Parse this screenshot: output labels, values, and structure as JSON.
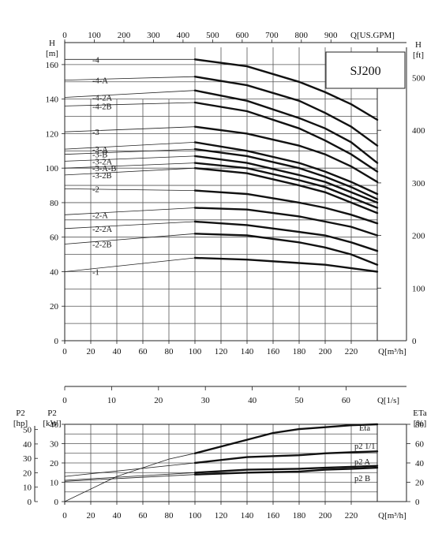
{
  "chart_data": [
    {
      "type": "line",
      "title": "SJ200",
      "xlabel": "Q[m³/h]",
      "x_top_label": "Q[US.GPM]",
      "ylabel": "H [m]",
      "ylabel_right": "H [ft]",
      "xlim": [
        0,
        240
      ],
      "ylim": [
        0,
        170
      ],
      "x_ticks": [
        "0",
        "20",
        "40",
        "60",
        "80",
        "100",
        "120",
        "140",
        "160",
        "180",
        "200",
        "220"
      ],
      "x_top_ticks": [
        "0",
        "100",
        "200",
        "300",
        "400",
        "500",
        "600",
        "700",
        "800",
        "900"
      ],
      "y_ticks": [
        "0",
        "20",
        "40",
        "60",
        "80",
        "100",
        "120",
        "140",
        "160"
      ],
      "y_right_ticks": [
        "0",
        "100",
        "200",
        "300",
        "400",
        "500"
      ],
      "grid": true,
      "series": [
        {
          "name": "-4",
          "x": [
            0,
            100,
            140,
            180,
            200,
            220,
            240
          ],
          "y": [
            163,
            163,
            159,
            150,
            144,
            137,
            128
          ]
        },
        {
          "name": "-4-A",
          "x": [
            0,
            100,
            140,
            180,
            200,
            220,
            240
          ],
          "y": [
            151,
            153,
            148,
            139,
            132,
            124,
            113
          ]
        },
        {
          "name": "-4-2A",
          "x": [
            0,
            100,
            140,
            180,
            200,
            220,
            240
          ],
          "y": [
            141,
            145,
            139,
            129,
            123,
            115,
            103
          ]
        },
        {
          "name": "-4-2B",
          "x": [
            0,
            100,
            140,
            180,
            200,
            220,
            240
          ],
          "y": [
            136,
            138,
            133,
            123,
            116,
            108,
            98
          ]
        },
        {
          "name": "-3",
          "x": [
            0,
            100,
            140,
            180,
            200,
            220,
            240
          ],
          "y": [
            121,
            124,
            120,
            113,
            108,
            101,
            92
          ]
        },
        {
          "name": "-3-A",
          "x": [
            0,
            100,
            140,
            180,
            200,
            220,
            240
          ],
          "y": [
            111,
            115,
            110,
            103,
            98,
            92,
            85
          ]
        },
        {
          "name": "-3-B",
          "x": [
            0,
            100,
            140,
            180,
            200,
            220,
            240
          ],
          "y": [
            108,
            111,
            107,
            100,
            95,
            89,
            82
          ]
        },
        {
          "name": "-3-2A",
          "x": [
            0,
            100,
            140,
            180,
            200,
            220,
            240
          ],
          "y": [
            104,
            107,
            103,
            96,
            92,
            86,
            80
          ]
        },
        {
          "name": "-3-A-B",
          "x": [
            0,
            100,
            140,
            180,
            200,
            220,
            240
          ],
          "y": [
            100,
            103,
            100,
            93,
            89,
            83,
            77
          ]
        },
        {
          "name": "-3-2B",
          "x": [
            0,
            100,
            140,
            180,
            200,
            220,
            240
          ],
          "y": [
            96,
            100,
            97,
            90,
            86,
            80,
            74
          ]
        },
        {
          "name": "-2",
          "x": [
            0,
            100,
            140,
            180,
            200,
            220,
            240
          ],
          "y": [
            88,
            87,
            85,
            80,
            77,
            73,
            68
          ]
        },
        {
          "name": "-2-A",
          "x": [
            0,
            100,
            140,
            180,
            200,
            220,
            240
          ],
          "y": [
            73,
            77,
            76,
            72,
            69,
            66,
            61
          ]
        },
        {
          "name": "-2-2A",
          "x": [
            0,
            100,
            140,
            180,
            200,
            220,
            240
          ],
          "y": [
            65,
            69,
            67,
            63,
            61,
            57,
            52
          ]
        },
        {
          "name": "-2-2B",
          "x": [
            0,
            100,
            140,
            180,
            200,
            220,
            240
          ],
          "y": [
            56,
            62,
            61,
            57,
            54,
            50,
            44
          ]
        },
        {
          "name": "-1",
          "x": [
            0,
            100,
            140,
            180,
            200,
            220,
            240
          ],
          "y": [
            40,
            48,
            47,
            45,
            44,
            42,
            40
          ]
        }
      ]
    },
    {
      "type": "line",
      "xlabel": "Q[m³/h]",
      "x_top_label": "Q[1/s]",
      "ylabel": "P2 [kW]",
      "ylabel_left_outer": "P2 [hp]",
      "ylabel_right": "ETa [%]",
      "xlim": [
        0,
        240
      ],
      "ylim": [
        0,
        40
      ],
      "x_ticks": [
        "0",
        "20",
        "40",
        "60",
        "80",
        "100",
        "120",
        "140",
        "160",
        "180",
        "200",
        "220"
      ],
      "x_top_ticks": [
        "0",
        "10",
        "20",
        "30",
        "40",
        "50",
        "60"
      ],
      "y_ticks": [
        "0",
        "10",
        "20",
        "30",
        "40"
      ],
      "y_hp_ticks": [
        "0",
        "10",
        "20",
        "30",
        "40",
        "50"
      ],
      "y_right_ticks": [
        "0",
        "20",
        "40",
        "60",
        "80"
      ],
      "grid": true,
      "series": [
        {
          "name": "Eta",
          "unit": "%",
          "x": [
            0,
            40,
            80,
            100,
            140,
            160,
            180,
            200,
            220,
            240
          ],
          "y": [
            0,
            26,
            44,
            50,
            64,
            71,
            75,
            77,
            79,
            80
          ]
        },
        {
          "name": "p2 1/1",
          "unit": "kW",
          "x": [
            0,
            100,
            140,
            180,
            200,
            220,
            240
          ],
          "y": [
            13,
            20,
            23,
            24,
            25,
            25.5,
            26
          ]
        },
        {
          "name": "p2 A",
          "unit": "kW",
          "x": [
            0,
            100,
            140,
            180,
            200,
            220,
            240
          ],
          "y": [
            11,
            15,
            16.5,
            17,
            17.5,
            18,
            18.5
          ]
        },
        {
          "name": "p2 B",
          "unit": "kW",
          "x": [
            0,
            100,
            140,
            180,
            200,
            220,
            240
          ],
          "y": [
            10.5,
            14,
            15,
            15.5,
            16.5,
            17,
            17.5
          ]
        }
      ]
    }
  ]
}
